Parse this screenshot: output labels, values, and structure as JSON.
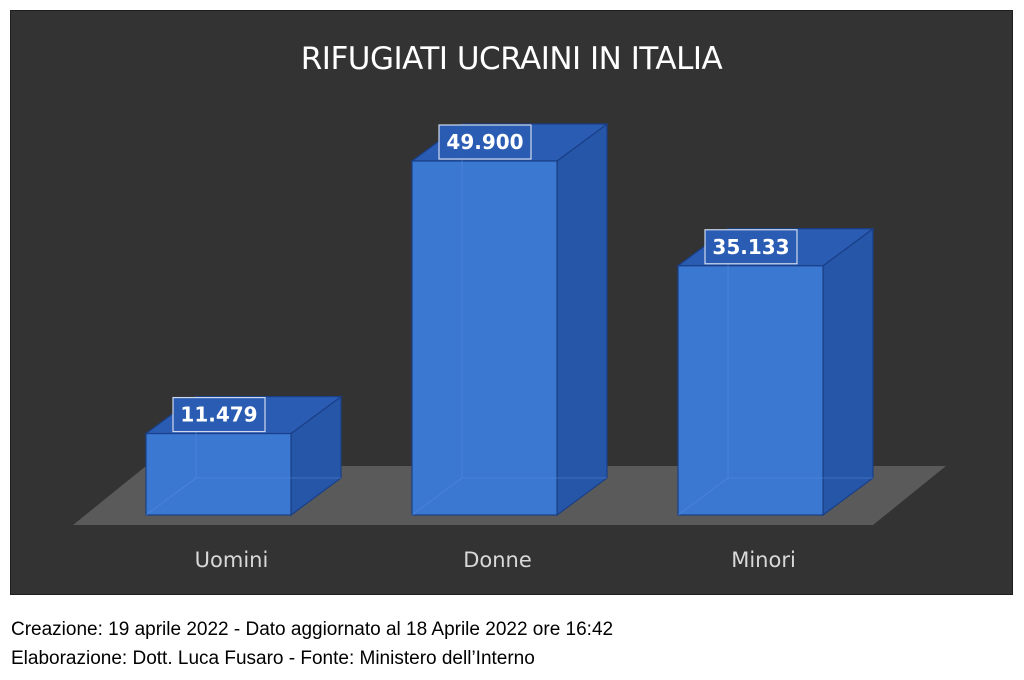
{
  "chart_data": {
    "type": "bar",
    "title": "RIFUGIATI UCRAINI IN ITALIA",
    "categories": [
      "Uomini",
      "Donne",
      "Minori"
    ],
    "values": [
      11479,
      49900,
      35133
    ],
    "value_labels": [
      "11.479",
      "49.900",
      "35.133"
    ],
    "xlabel": "",
    "ylabel": "",
    "ylim": [
      0,
      49900
    ],
    "grid": false,
    "legend": "none",
    "style": "3d-column",
    "colors": {
      "bar": "#3a78d2",
      "background": "#333333",
      "floor": "#5a5a5a"
    }
  },
  "footer": {
    "line1": "Creazione: 19 aprile 2022 - Dato aggiornato al 18 Aprile 2022 ore 16:42",
    "line2": "Elaborazione: Dott. Luca Fusaro - Fonte: Ministero dell’Interno"
  }
}
